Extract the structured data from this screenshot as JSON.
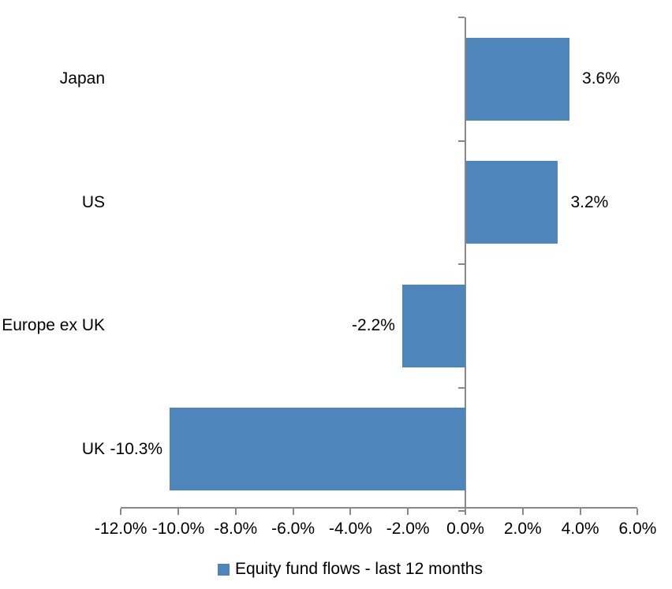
{
  "chart_data": {
    "type": "bar",
    "orientation": "horizontal",
    "title": "",
    "categories": [
      "Japan",
      "US",
      "Europe ex UK",
      "UK"
    ],
    "values": [
      3.6,
      3.2,
      -2.2,
      -10.3
    ],
    "data_labels": [
      "3.6%",
      "3.2%",
      "-2.2%",
      "-10.3%"
    ],
    "series": [
      {
        "name": "Equity fund flows - last 12 months",
        "values": [
          3.6,
          3.2,
          -2.2,
          -10.3
        ]
      }
    ],
    "legend": {
      "label": "Equity fund flows - last 12 months",
      "position": "bottom"
    },
    "x_axis": {
      "tick_labels": [
        "-12.0%",
        "-10.0%",
        "-8.0%",
        "-6.0%",
        "-4.0%",
        "-2.0%",
        "0.0%",
        "2.0%",
        "4.0%",
        "6.0%"
      ],
      "tick_values": [
        -12,
        -10,
        -8,
        -6,
        -4,
        -2,
        0,
        2,
        4,
        6
      ],
      "min": -12,
      "max": 6
    },
    "grid": false,
    "colors": {
      "bar": "#4E86BC",
      "axis": "#898989",
      "text": "#000000",
      "background": "#FFFFFF"
    }
  }
}
